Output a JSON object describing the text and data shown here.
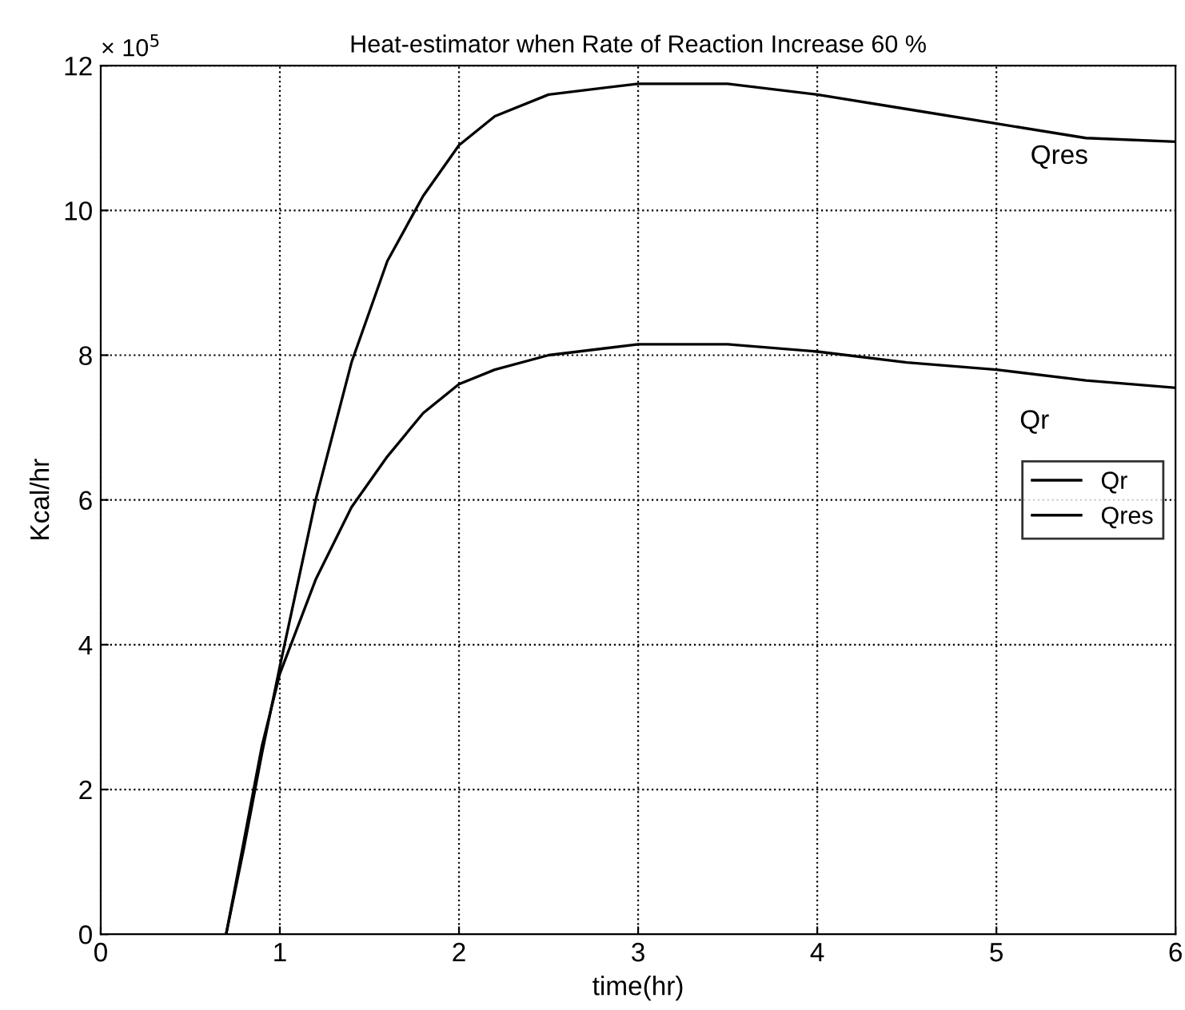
{
  "chart_data": {
    "type": "line",
    "title": "Heat-estimator when Rate of Reaction Increase 60 %",
    "xlabel": "time(hr)",
    "ylabel": "Kcal/hr",
    "x": [
      0.7,
      0.8,
      0.9,
      1.0,
      1.2,
      1.4,
      1.6,
      1.8,
      2.0,
      2.2,
      2.5,
      3.0,
      3.5,
      4.0,
      4.5,
      5.0,
      5.5,
      6.0
    ],
    "series": [
      {
        "name": "Qr",
        "color": "#000000",
        "values": [
          0,
          1.3,
          2.6,
          3.6,
          4.9,
          5.9,
          6.6,
          7.2,
          7.6,
          7.8,
          8.0,
          8.15,
          8.15,
          8.05,
          7.9,
          7.8,
          7.65,
          7.55
        ]
      },
      {
        "name": "Qres",
        "color": "#000000",
        "values": [
          0,
          1.2,
          2.5,
          3.7,
          6.0,
          7.9,
          9.3,
          10.2,
          10.9,
          11.3,
          11.6,
          11.75,
          11.75,
          11.6,
          11.4,
          11.2,
          11.0,
          10.95
        ]
      }
    ],
    "annotations": [
      "× 10$^{5}$",
      "Qres",
      "Qr"
    ],
    "xlim": [
      0,
      6
    ],
    "xticks": [
      0,
      1,
      2,
      3,
      4,
      5,
      6
    ],
    "ylim": [
      0,
      12
    ],
    "yticks": [
      0,
      2,
      4,
      6,
      8,
      10,
      12
    ],
    "grid": true,
    "legend": "center right",
    "line_style": "solid",
    "marker": "none"
  }
}
